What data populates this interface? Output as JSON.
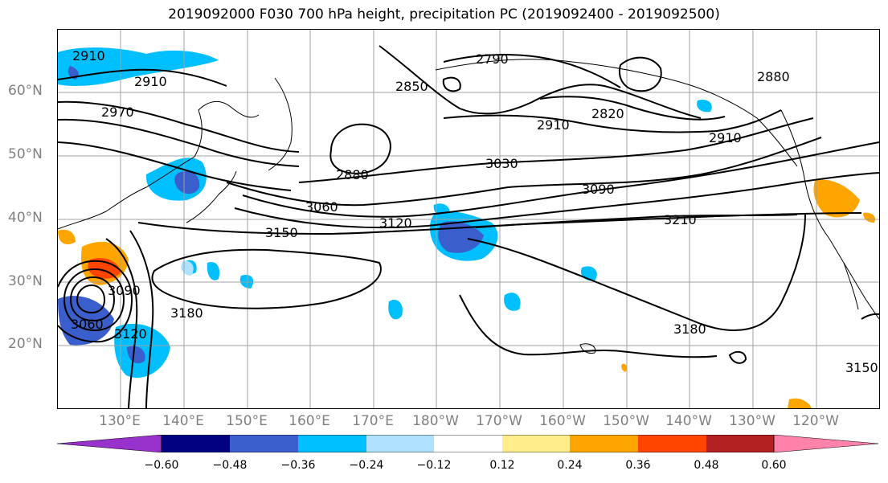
{
  "title": "2019092000 F030 700 hPa height, precipitation PC (2019092400 - 2019092500)",
  "latitude_labels": [
    "60°N",
    "50°N",
    "40°N",
    "30°N",
    "20°N"
  ],
  "longitude_labels": [
    "130°E",
    "140°E",
    "150°E",
    "160°E",
    "170°E",
    "180°W",
    "170°W",
    "160°W",
    "150°W",
    "140°W",
    "130°W",
    "120°W"
  ],
  "contour_labels": [
    "2910",
    "2910",
    "2970",
    "2790",
    "2850",
    "2820",
    "2880",
    "2910",
    "2880",
    "3030",
    "3090",
    "3060",
    "3120",
    "3150",
    "3210",
    "3180",
    "3180",
    "3060",
    "3090",
    "3120",
    "3150",
    "2910"
  ],
  "colorbar": {
    "tick_labels": [
      "−0.60",
      "−0.48",
      "−0.36",
      "−0.24",
      "−0.12",
      "0.12",
      "0.24",
      "0.36",
      "0.48",
      "0.60"
    ],
    "colors": [
      "#9932cc",
      "#000080",
      "#3a5fcd",
      "#00bfff",
      "#b0e2ff",
      "#ffffff",
      "#ffec8b",
      "#ffa500",
      "#ff4500",
      "#b22222",
      "#ff82ab"
    ]
  },
  "colors": {
    "contour": "#000000",
    "grid": "#a0a0a0",
    "axis_text": "#808080"
  }
}
